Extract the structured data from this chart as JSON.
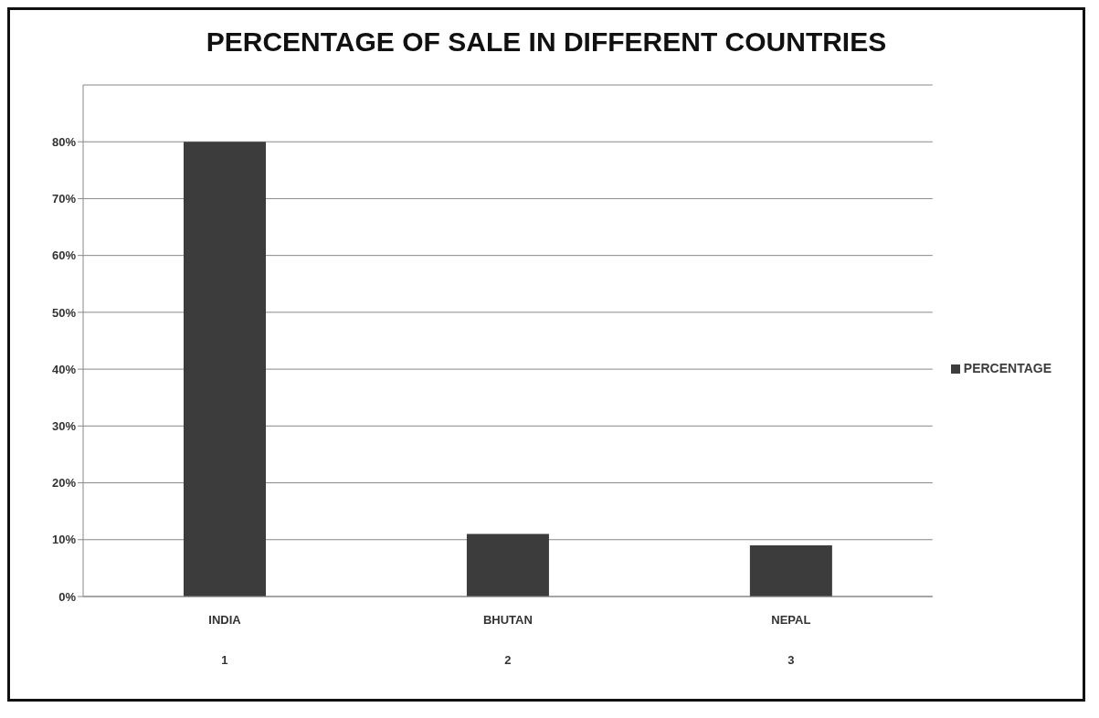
{
  "chart_data": {
    "type": "bar",
    "title": "PERCENTAGE OF SALE IN DIFFERENT COUNTRIES",
    "categories": [
      "INDIA\n1",
      "BHUTAN\n2",
      "NEPAL\n3"
    ],
    "series": [
      {
        "name": "PERCENTAGE",
        "color": "#3c3c3c",
        "values": [
          80,
          11,
          9
        ]
      }
    ],
    "ylim": [
      0,
      90
    ],
    "yticks": [
      {
        "value": 0,
        "label": "0%"
      },
      {
        "value": 10,
        "label": "10%"
      },
      {
        "value": 20,
        "label": "20%"
      },
      {
        "value": 30,
        "label": "30%"
      },
      {
        "value": 40,
        "label": "40%"
      },
      {
        "value": 50,
        "label": "50%"
      },
      {
        "value": 60,
        "label": "60%"
      },
      {
        "value": 70,
        "label": "70%"
      },
      {
        "value": 80,
        "label": "80%"
      }
    ],
    "grid": "y",
    "legend": "right"
  }
}
